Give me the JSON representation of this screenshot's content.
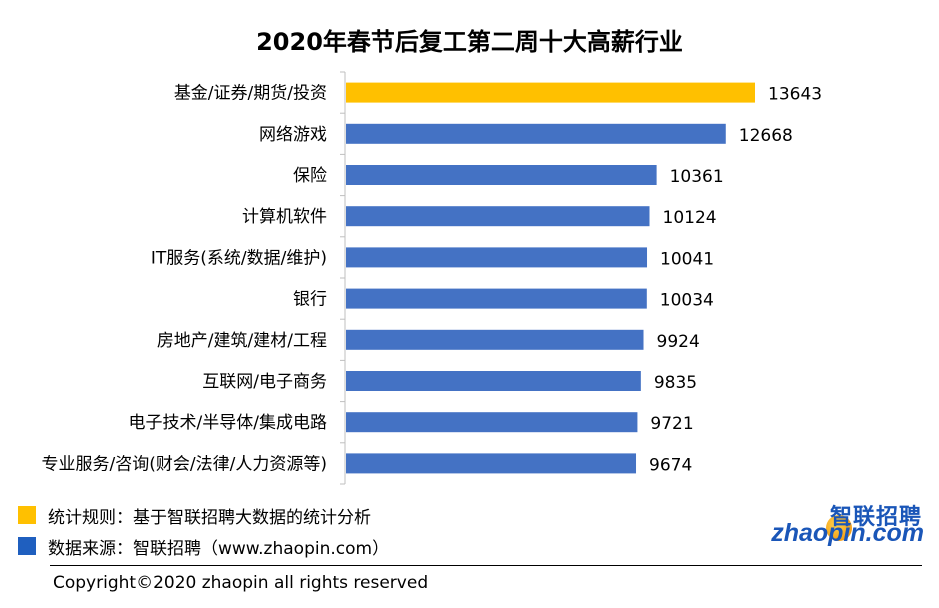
{
  "chart_data": {
    "type": "bar",
    "orientation": "horizontal",
    "title": "2020年春节后复工第二周十大高薪行业",
    "categories": [
      "基金/证券/期货/投资",
      "网络游戏",
      "保险",
      "计算机软件",
      "IT服务(系统/数据/维护)",
      "银行",
      "房地产/建筑/建材/工程",
      "互联网/电子商务",
      "电子技术/半导体/集成电路",
      "专业服务/咨询(财会/法律/人力资源等)"
    ],
    "values": [
      13643,
      12668,
      10361,
      10124,
      10041,
      10034,
      9924,
      9835,
      9721,
      9674
    ],
    "value_labels": [
      "13643",
      "12668",
      "10361",
      "10124",
      "10041",
      "10034",
      "9924",
      "9835",
      "9721",
      "9674"
    ],
    "xlim": [
      0,
      14400
    ],
    "grid": false,
    "colors": {
      "highlight": "#FFC000",
      "default": "#4472C4"
    },
    "highlight_index": 0
  },
  "legend": {
    "items": [
      {
        "color": "#FFC000",
        "label": "统计规则：基于智联招聘大数据的统计分析"
      },
      {
        "color": "#1F5FBF",
        "label": "数据来源：智联招聘（www.zhaopin.com）"
      }
    ]
  },
  "logo": {
    "cn": "智联招聘",
    "en": "zhaopin.com"
  },
  "footer": {
    "copyright": "Copyright©2020 zhaopin all rights reserved"
  }
}
